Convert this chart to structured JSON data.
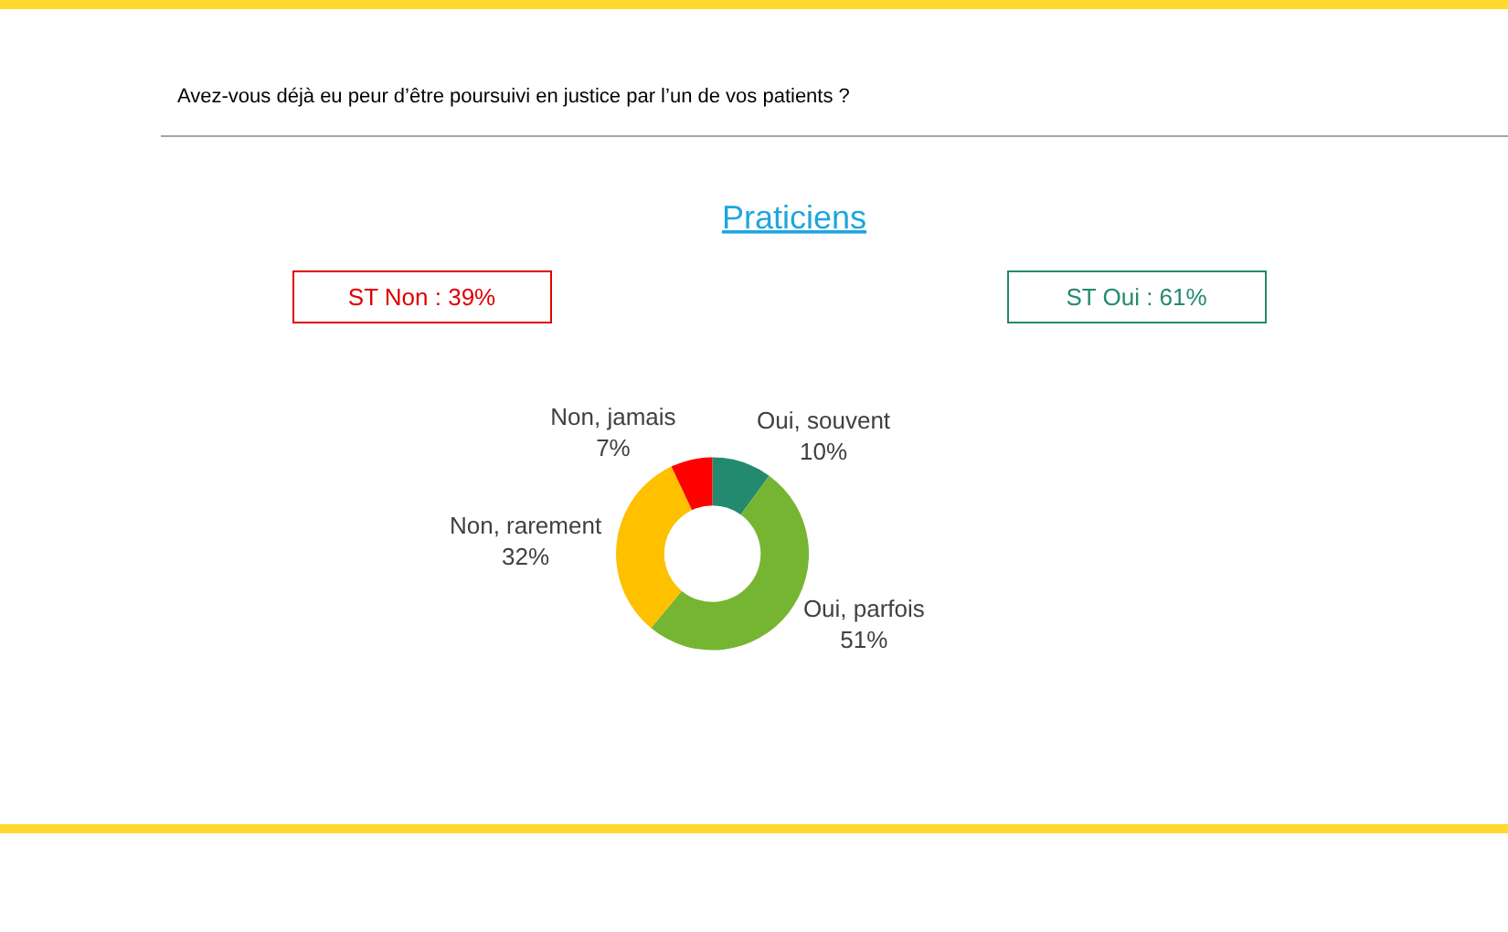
{
  "chart_data": {
    "type": "donut",
    "title": "Avez-vous déjà eu peur d’être poursuivi en justice par l’un de vos patients ?",
    "subtitle": "Praticiens",
    "categories": [
      "Oui, souvent",
      "Oui, parfois",
      "Non, rarement",
      "Non, jamais"
    ],
    "values": [
      10,
      51,
      32,
      7
    ],
    "value_labels": [
      "10%",
      "51%",
      "32%",
      "7%"
    ],
    "colors": [
      "#238a6f",
      "#76b531",
      "#ffc000",
      "#ff0000"
    ],
    "annotations": [
      "ST Non : 39%",
      "ST Oui : 61%"
    ],
    "legend": false
  }
}
